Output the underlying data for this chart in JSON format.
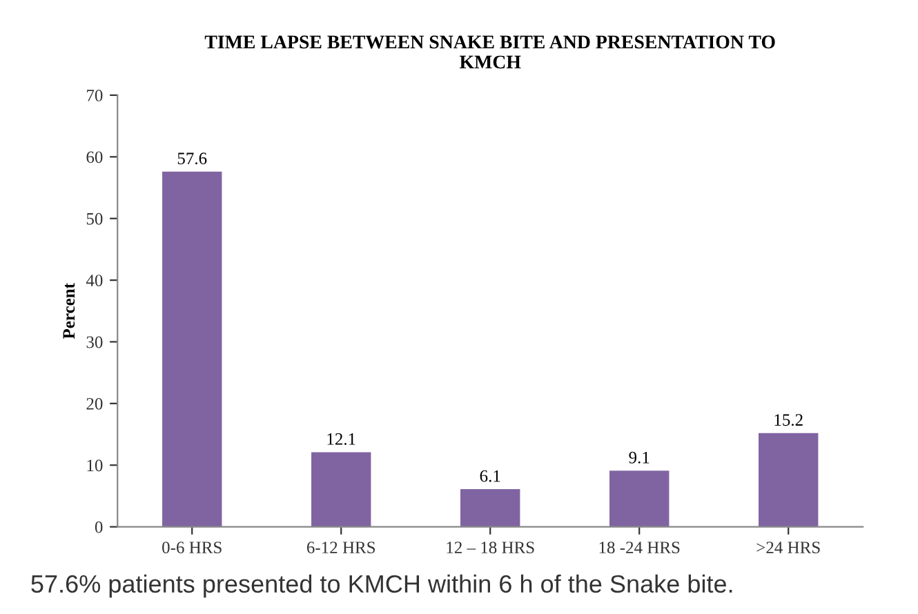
{
  "chart_data": {
    "type": "bar",
    "title": "TIME LAPSE BETWEEN SNAKE BITE AND PRESENTATION TO\nKMCH",
    "ylabel": "Percent",
    "categories": [
      "0-6 HRS",
      "6-12 HRS",
      "12 – 18 HRS",
      "18 -24 HRS",
      ">24 HRS"
    ],
    "values": [
      57.6,
      12.1,
      6.1,
      9.1,
      15.2
    ],
    "color": "#8064a2",
    "ylim": [
      0,
      70
    ],
    "yticks": [
      0,
      10,
      20,
      30,
      40,
      50,
      60,
      70
    ],
    "grid": false,
    "data_labels": true,
    "annotations": [
      "57.6% patients presented to KMCH within 6 h of the Snake bite."
    ]
  }
}
